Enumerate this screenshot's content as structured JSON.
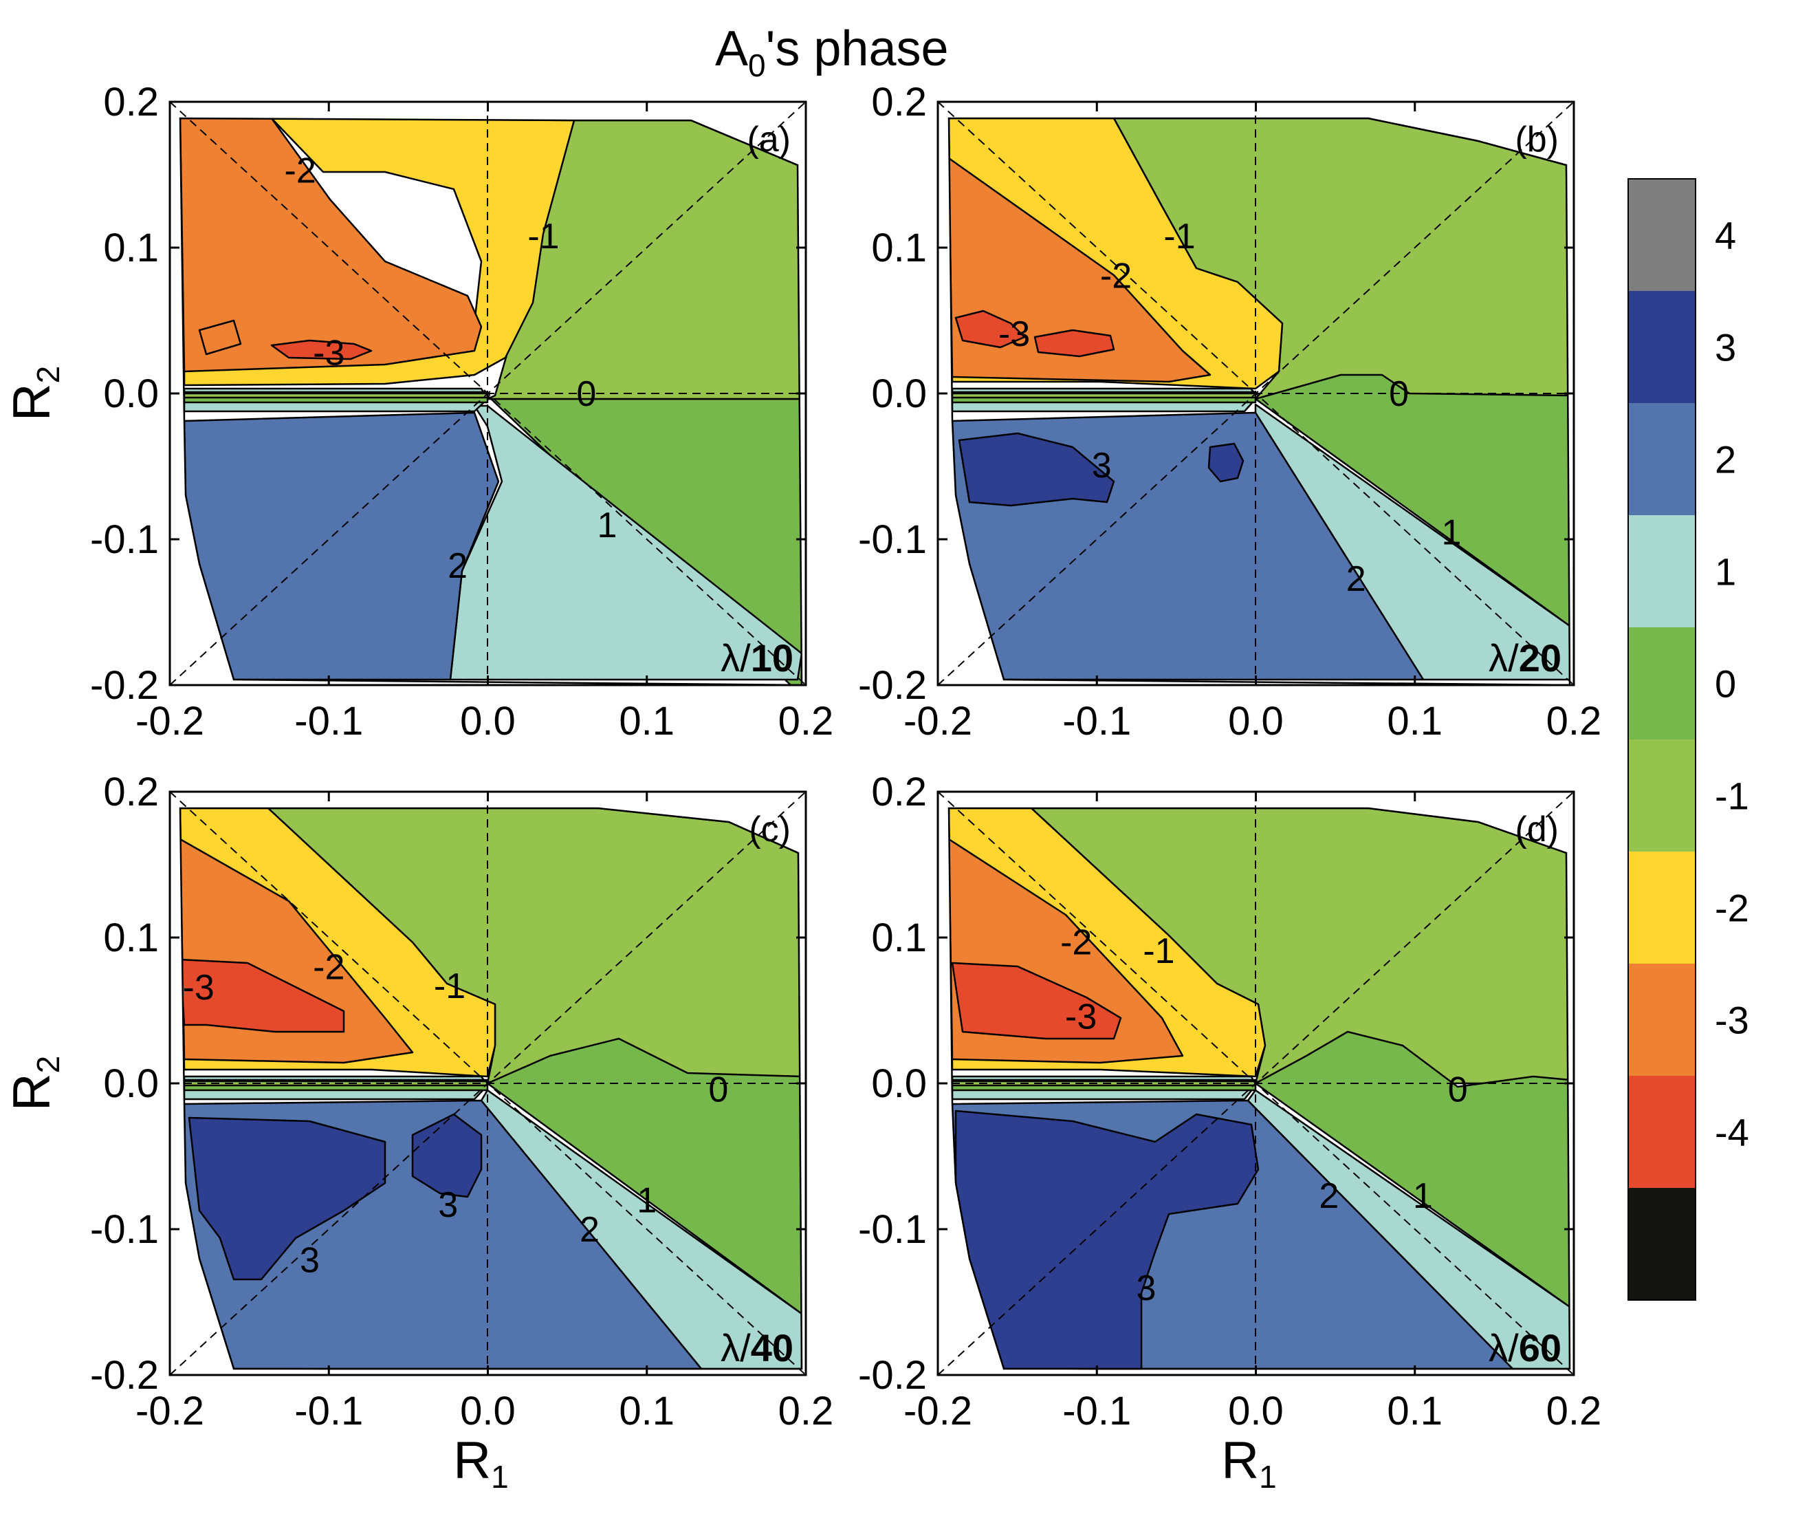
{
  "chart_data": {
    "type": "contour",
    "title": "A",
    "title_subscript": "0",
    "title_suffix": "'s phase",
    "xlabel": "R",
    "xlabel_subscript": "1",
    "ylabel": "R",
    "ylabel_subscript": "2",
    "xlim": [
      -0.2,
      0.2
    ],
    "ylim": [
      -0.2,
      0.2
    ],
    "x_ticks": [
      -0.2,
      -0.1,
      0.0,
      0.1,
      0.2
    ],
    "y_ticks": [
      -0.2,
      -0.1,
      0.0,
      0.1,
      0.2
    ],
    "x_tick_labels": [
      "-0.2",
      "-0.1",
      "0.0",
      "0.1",
      "0.2"
    ],
    "y_tick_labels": [
      "-0.2",
      "-0.1",
      "0.0",
      "0.1",
      "0.2"
    ],
    "contour_levels": [
      -4,
      -3,
      -2,
      -1,
      0,
      1,
      2,
      3,
      4
    ],
    "colorbar": {
      "tick_labels": [
        "4",
        "3",
        "2",
        "1",
        "0",
        "-1",
        "-2",
        "-3",
        "-4"
      ],
      "colors": [
        "#7f7f7f",
        "#2f3f8f",
        "#5374ad",
        "#a8d8d0",
        "#76b84c",
        "#96c24e",
        "#ffd530",
        "#ef8132",
        "#e44a2b",
        "#141410"
      ]
    },
    "panels": [
      {
        "id": "a",
        "label": "(a)",
        "wavelength_prefix": "λ/",
        "wavelength_value": "10",
        "contour_labels": [
          {
            "text": "-2",
            "x": -0.118,
            "y": 0.153
          },
          {
            "text": "-1",
            "x": 0.035,
            "y": 0.108
          },
          {
            "text": "-3",
            "x": -0.1,
            "y": 0.028
          },
          {
            "text": "0",
            "x": 0.062,
            "y": 0.0
          },
          {
            "text": "1",
            "x": 0.075,
            "y": -0.09
          },
          {
            "text": "2",
            "x": -0.019,
            "y": -0.118
          }
        ]
      },
      {
        "id": "b",
        "label": "(b)",
        "wavelength_prefix": "λ/",
        "wavelength_value": "20",
        "contour_labels": [
          {
            "text": "-1",
            "x": -0.048,
            "y": 0.108
          },
          {
            "text": "-2",
            "x": -0.088,
            "y": 0.081
          },
          {
            "text": "-3",
            "x": -0.152,
            "y": 0.041
          },
          {
            "text": "0",
            "x": 0.09,
            "y": 0.0
          },
          {
            "text": "3",
            "x": -0.097,
            "y": -0.049
          },
          {
            "text": "1",
            "x": 0.123,
            "y": -0.095
          },
          {
            "text": "2",
            "x": 0.063,
            "y": -0.127
          }
        ]
      },
      {
        "id": "c",
        "label": "(c)",
        "wavelength_prefix": "λ/",
        "wavelength_value": "40",
        "contour_labels": [
          {
            "text": "-3",
            "x": -0.182,
            "y": 0.066
          },
          {
            "text": "-2",
            "x": -0.1,
            "y": 0.08
          },
          {
            "text": "-1",
            "x": -0.024,
            "y": 0.067
          },
          {
            "text": "0",
            "x": 0.145,
            "y": -0.004
          },
          {
            "text": "3",
            "x": -0.025,
            "y": -0.083
          },
          {
            "text": "1",
            "x": 0.1,
            "y": -0.08
          },
          {
            "text": "2",
            "x": 0.064,
            "y": -0.1
          },
          {
            "text": "3",
            "x": -0.112,
            "y": -0.121
          }
        ]
      },
      {
        "id": "d",
        "label": "(d)",
        "wavelength_prefix": "λ/",
        "wavelength_value": "60",
        "contour_labels": [
          {
            "text": "-2",
            "x": -0.113,
            "y": 0.097
          },
          {
            "text": "-1",
            "x": -0.061,
            "y": 0.091
          },
          {
            "text": "-3",
            "x": -0.11,
            "y": 0.046
          },
          {
            "text": "0",
            "x": 0.127,
            "y": -0.004
          },
          {
            "text": "2",
            "x": 0.046,
            "y": -0.077
          },
          {
            "text": "1",
            "x": 0.105,
            "y": -0.077
          },
          {
            "text": "3",
            "x": -0.069,
            "y": -0.14
          }
        ]
      }
    ]
  }
}
